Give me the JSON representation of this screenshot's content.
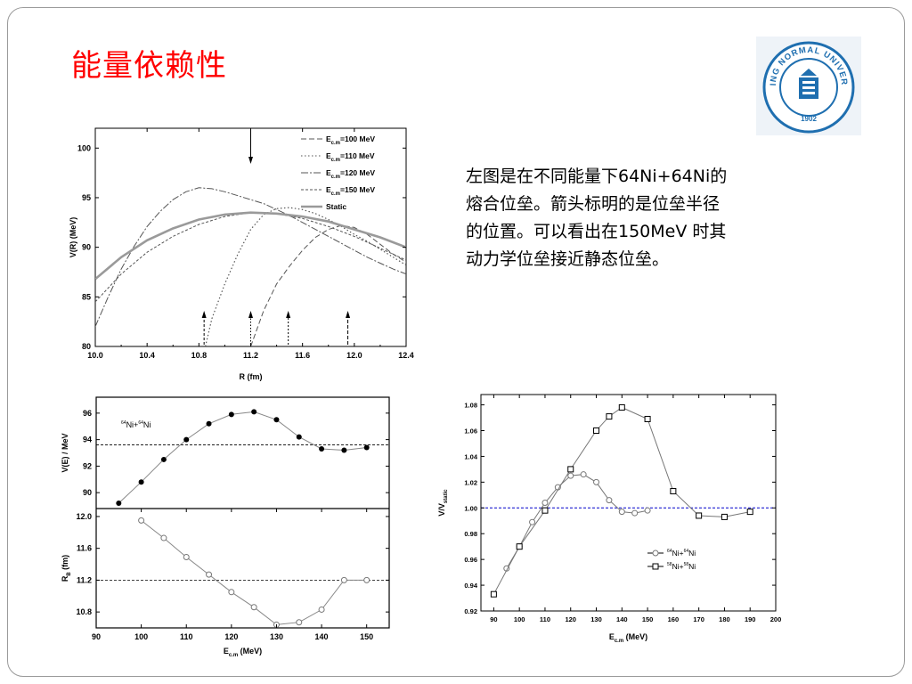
{
  "slide": {
    "title": "能量依赖性",
    "description_lines": [
      "左图是在不同能量下64Ni+64Ni的",
      "熔合位垒。箭头标明的是位垒半径",
      "的位置。可以看出在150MeV 时其",
      "动力学位垒接近静态位垒。"
    ],
    "logo": {
      "text_top": "BEIJING NORMAL UNIVERSITY",
      "year": "1902",
      "color": "#1f6fb0"
    }
  },
  "chart_data": [
    {
      "id": "top",
      "type": "line",
      "title": "",
      "xlabel": "R (fm)",
      "ylabel": "V(R) (MeV)",
      "xlim": [
        10.0,
        12.4
      ],
      "ylim": [
        80,
        102
      ],
      "xticks": [
        10.0,
        10.4,
        10.8,
        11.2,
        11.6,
        12.0,
        12.4
      ],
      "xtick_labels": [
        "10.0",
        "10.4",
        "10.8",
        "11.2",
        "11.6",
        "12.0",
        "12.4"
      ],
      "yticks": [
        80,
        85,
        90,
        95,
        100
      ],
      "legend_position": "top-right",
      "legend": [
        {
          "label": "E",
          "sub": "c.m",
          "suffix": "=100 MeV",
          "dash": "6,3"
        },
        {
          "label": "E",
          "sub": "c.m",
          "suffix": "=110 MeV",
          "dash": "1.5,2.5"
        },
        {
          "label": "E",
          "sub": "c.m",
          "suffix": "=120 MeV",
          "dash": "8,2,2,2"
        },
        {
          "label": "E",
          "sub": "c.m",
          "suffix": "=150 MeV",
          "dash": "3,2"
        },
        {
          "label": "Static",
          "sub": "",
          "suffix": "",
          "dash": ""
        }
      ],
      "series": [
        {
          "id": "E100",
          "dash": "6,3",
          "width": 1,
          "color": "#555555",
          "x": [
            11.2,
            11.3,
            11.4,
            11.5,
            11.6,
            11.7,
            11.8,
            11.9,
            12.0,
            12.1,
            12.2,
            12.3,
            12.4
          ],
          "y": [
            80.0,
            83.6,
            86.3,
            88.1,
            89.7,
            91.0,
            91.8,
            92.2,
            92.0,
            91.3,
            90.3,
            89.3,
            88.5
          ]
        },
        {
          "id": "E110",
          "dash": "1.5,2.5",
          "width": 1.2,
          "color": "#555555",
          "x": [
            10.85,
            10.9,
            11.0,
            11.1,
            11.2,
            11.3,
            11.4,
            11.5,
            11.6,
            11.7,
            11.8,
            11.9,
            12.0,
            12.1,
            12.2,
            12.3,
            12.4
          ],
          "y": [
            80.0,
            82.8,
            86.3,
            89.3,
            91.8,
            93.3,
            93.9,
            94.0,
            93.8,
            93.4,
            92.8,
            92.1,
            91.3,
            90.6,
            89.8,
            89.0,
            88.2
          ]
        },
        {
          "id": "E120",
          "dash": "8,2,2,2",
          "width": 1,
          "color": "#555555",
          "x": [
            10.0,
            10.1,
            10.2,
            10.3,
            10.4,
            10.5,
            10.6,
            10.7,
            10.8,
            10.9,
            11.0,
            11.1,
            11.2,
            11.3,
            11.4,
            11.5,
            11.6,
            11.7,
            11.8,
            11.9,
            12.0,
            12.1,
            12.2,
            12.3,
            12.4
          ],
          "y": [
            82.0,
            85.0,
            87.8,
            90.1,
            92.1,
            93.6,
            94.8,
            95.6,
            96.0,
            95.9,
            95.6,
            95.2,
            94.8,
            94.4,
            93.8,
            93.2,
            92.5,
            91.8,
            91.1,
            90.4,
            89.7,
            89.0,
            88.4,
            87.8,
            87.3
          ]
        },
        {
          "id": "E150",
          "dash": "3,2",
          "width": 1,
          "color": "#555555",
          "x": [
            10.0,
            10.2,
            10.4,
            10.6,
            10.8,
            11.0,
            11.2,
            11.4,
            11.6,
            11.8,
            12.0,
            12.2,
            12.4
          ],
          "y": [
            84.5,
            87.3,
            89.5,
            91.1,
            92.3,
            93.1,
            93.5,
            93.4,
            92.9,
            92.1,
            91.1,
            89.9,
            88.7
          ]
        },
        {
          "id": "static",
          "dash": "",
          "width": 2.6,
          "color": "#9a9a9a",
          "x": [
            10.0,
            10.2,
            10.4,
            10.6,
            10.8,
            11.0,
            11.2,
            11.4,
            11.6,
            11.8,
            12.0,
            12.2,
            12.4
          ],
          "y": [
            86.8,
            89.0,
            90.7,
            91.9,
            92.8,
            93.3,
            93.5,
            93.4,
            93.1,
            92.6,
            91.8,
            91.0,
            90.0
          ]
        }
      ],
      "arrows_top": [
        {
          "x": 11.2
        }
      ],
      "arrows_bottom": [
        {
          "x": 10.84,
          "dash": "3,2"
        },
        {
          "x": 11.2,
          "dash": "1.5,2"
        },
        {
          "x": 11.49,
          "dash": "2,2"
        },
        {
          "x": 11.95,
          "dash": "4,2"
        }
      ]
    },
    {
      "id": "mid",
      "type": "line",
      "title": "",
      "xlabel": "",
      "ylabel": "V(E) / MeV",
      "xlim": [
        90,
        155
      ],
      "ylim": [
        88.8,
        97.2
      ],
      "yticks": [
        90,
        92,
        94,
        96
      ],
      "annotation": {
        "pre1": "64",
        "t1": "Ni+",
        "pre2": "64",
        "t2": "Ni"
      },
      "hline": 93.6,
      "series": [
        {
          "name": "V(E)",
          "marker": "filled-circle",
          "x": [
            95,
            100,
            105,
            110,
            115,
            120,
            125,
            130,
            135,
            140,
            145,
            150
          ],
          "y": [
            89.2,
            90.8,
            92.5,
            94.0,
            95.2,
            95.9,
            96.1,
            95.5,
            94.2,
            93.3,
            93.2,
            93.4
          ]
        }
      ]
    },
    {
      "id": "bot",
      "type": "line",
      "title": "",
      "xlabel": "E",
      "xlabel_sub": "c.m",
      "xlabel_suffix": " (MeV)",
      "ylabel": "R",
      "ylabel_sub": "B",
      "ylabel_suffix": " (fm)",
      "xlim": [
        90,
        155
      ],
      "ylim": [
        10.6,
        12.1
      ],
      "xticks": [
        90,
        100,
        110,
        120,
        130,
        140,
        150
      ],
      "yticks": [
        10.8,
        11.2,
        11.6,
        12.0
      ],
      "ytick_labels": [
        "10.8",
        "11.2",
        "11.6",
        "12.0"
      ],
      "hline": 11.2,
      "series": [
        {
          "name": "R_B",
          "marker": "open-circle",
          "x": [
            100,
            105,
            110,
            115,
            120,
            125,
            130,
            135,
            140,
            145,
            150
          ],
          "y": [
            11.95,
            11.73,
            11.49,
            11.27,
            11.05,
            10.86,
            10.64,
            10.67,
            10.83,
            11.2,
            11.2
          ]
        }
      ]
    },
    {
      "id": "right",
      "type": "line",
      "title": "",
      "xlabel": "E",
      "xlabel_sub": "c.m",
      "xlabel_suffix": " (MeV)",
      "ylabel": "V/V",
      "ylabel_sub": "static",
      "xlim": [
        85,
        200
      ],
      "ylim": [
        0.92,
        1.088
      ],
      "xticks": [
        90,
        100,
        110,
        120,
        130,
        140,
        150,
        160,
        170,
        180,
        190,
        200
      ],
      "yticks": [
        0.92,
        0.94,
        0.96,
        0.98,
        1.0,
        1.02,
        1.04,
        1.06,
        1.08
      ],
      "ytick_labels": [
        "0.92",
        "0.94",
        "0.96",
        "0.98",
        "1.00",
        "1.02",
        "1.04",
        "1.06",
        "1.08"
      ],
      "hline": 1.0,
      "hline_color": "#0000cc",
      "legend_position": "lower-right",
      "legend": [
        {
          "pre1": "64",
          "t1": "Ni+",
          "pre2": "64",
          "t2": "Ni",
          "marker": "open-circle"
        },
        {
          "pre1": "58",
          "t1": "Ni+",
          "pre2": "58",
          "t2": "Ni",
          "marker": "open-square"
        }
      ],
      "series": [
        {
          "name": "64Ni+64Ni",
          "marker": "open-circle",
          "x": [
            95,
            100,
            105,
            110,
            115,
            120,
            125,
            130,
            135,
            140,
            145,
            150
          ],
          "y": [
            0.953,
            0.97,
            0.989,
            1.004,
            1.016,
            1.025,
            1.026,
            1.02,
            1.006,
            0.997,
            0.996,
            0.998
          ]
        },
        {
          "name": "58Ni+58Ni",
          "marker": "open-square",
          "x": [
            90,
            100,
            110,
            120,
            130,
            135,
            140,
            150,
            160,
            170,
            180,
            190
          ],
          "y": [
            0.933,
            0.97,
            0.998,
            1.03,
            1.06,
            1.071,
            1.078,
            1.069,
            1.013,
            0.994,
            0.993,
            0.997
          ]
        }
      ]
    }
  ]
}
